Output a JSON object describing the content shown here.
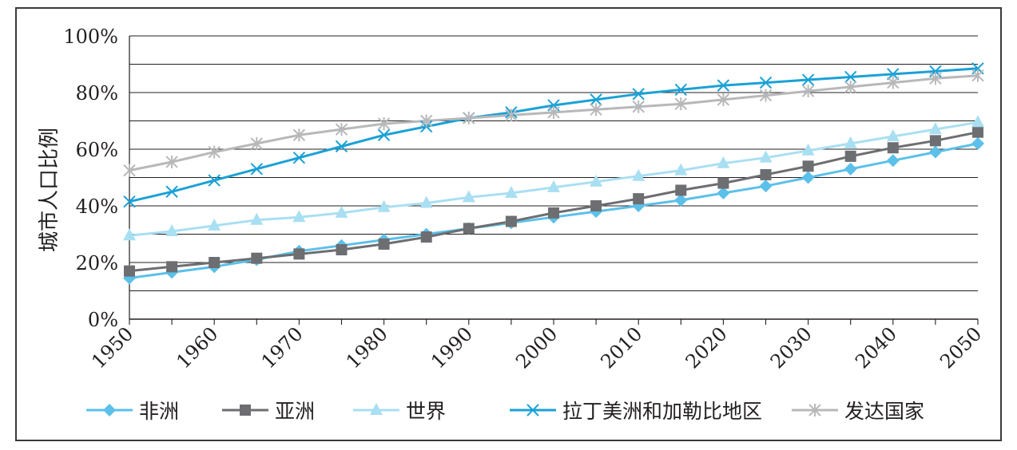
{
  "chart_data": {
    "type": "line",
    "title": "",
    "xlabel": "",
    "ylabel": "城市人口比例",
    "x": [
      1950,
      1955,
      1960,
      1965,
      1970,
      1975,
      1980,
      1985,
      1990,
      1995,
      2000,
      2005,
      2010,
      2015,
      2020,
      2025,
      2030,
      2035,
      2040,
      2045,
      2050
    ],
    "x_ticks": [
      "1950",
      "1960",
      "1970",
      "1980",
      "1990",
      "2000",
      "2010",
      "2020",
      "2030",
      "2040",
      "2050"
    ],
    "y_ticks": [
      "0%",
      "20%",
      "40%",
      "60%",
      "80%",
      "100%"
    ],
    "ylim": [
      0,
      100
    ],
    "y_grid_step": 10,
    "grid": true,
    "legend_position": "bottom",
    "series": [
      {
        "name": "非洲",
        "color": "#5bc0ea",
        "marker": "diamond",
        "values": [
          14.5,
          16.5,
          18.5,
          21,
          24,
          26,
          28,
          30,
          32,
          34,
          36,
          38,
          40,
          42,
          44.5,
          47,
          50,
          53,
          56,
          59,
          62
        ]
      },
      {
        "name": "亚洲",
        "color": "#6d6e71",
        "marker": "square",
        "values": [
          17,
          18.5,
          20,
          21.5,
          23,
          24.5,
          26.5,
          29,
          32,
          34.5,
          37.5,
          40,
          42.5,
          45.5,
          48,
          51,
          54,
          57.5,
          60.5,
          63,
          66
        ]
      },
      {
        "name": "世界",
        "color": "#a9dff2",
        "marker": "triangle",
        "values": [
          29.5,
          31,
          33,
          35,
          36,
          37.5,
          39.5,
          41,
          43,
          44.5,
          46.5,
          48.5,
          50.5,
          52.5,
          55,
          57,
          59.5,
          62,
          64.5,
          67,
          69.5
        ]
      },
      {
        "name": "拉丁美洲和加勒比地区",
        "color": "#1ba1d6",
        "marker": "x",
        "values": [
          41.5,
          45,
          49,
          53,
          57,
          61,
          65,
          68,
          71,
          73,
          75.5,
          77.5,
          79.5,
          81,
          82.5,
          83.5,
          84.5,
          85.5,
          86.5,
          87.5,
          88.5
        ]
      },
      {
        "name": "发达国家",
        "color": "#b7b8ba",
        "marker": "asterisk",
        "values": [
          52.5,
          55.5,
          59,
          62,
          65,
          67,
          69,
          70,
          71,
          72,
          73,
          74,
          75,
          76,
          77.5,
          79,
          80.5,
          82,
          83.5,
          85,
          86
        ]
      }
    ]
  }
}
